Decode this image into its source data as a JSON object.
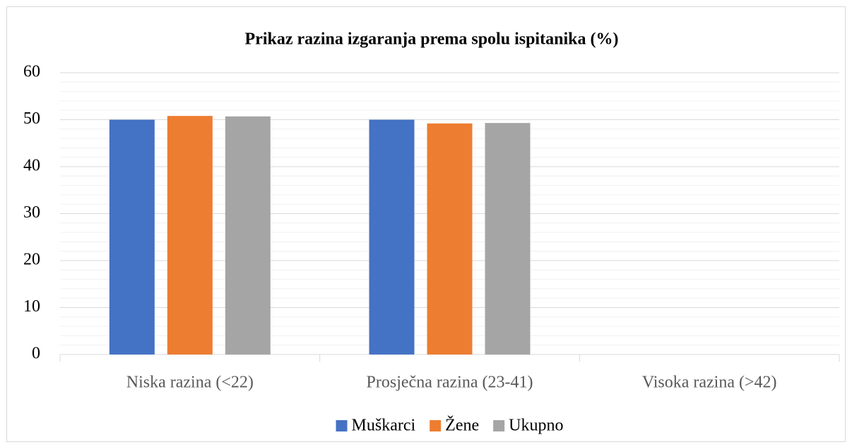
{
  "chart_data": {
    "type": "bar",
    "title": "Prikaz razina izgaranja prema spolu ispitanika (%)",
    "categories": [
      "Niska razina (<22)",
      "Prosječna razina (23-41)",
      "Visoka razina (>42)"
    ],
    "series": [
      {
        "name": "Muškarci",
        "color": "#4472c4",
        "values": [
          50,
          50,
          0
        ]
      },
      {
        "name": "Žene",
        "color": "#ed7d31",
        "values": [
          50.8,
          49.2,
          0
        ]
      },
      {
        "name": "Ukupno",
        "color": "#a5a5a5",
        "values": [
          50.7,
          49.3,
          0
        ]
      }
    ],
    "ylim": [
      0,
      60
    ],
    "yticks": [
      0,
      10,
      20,
      30,
      40,
      50,
      60
    ],
    "grid": true,
    "legend": "bottom"
  }
}
